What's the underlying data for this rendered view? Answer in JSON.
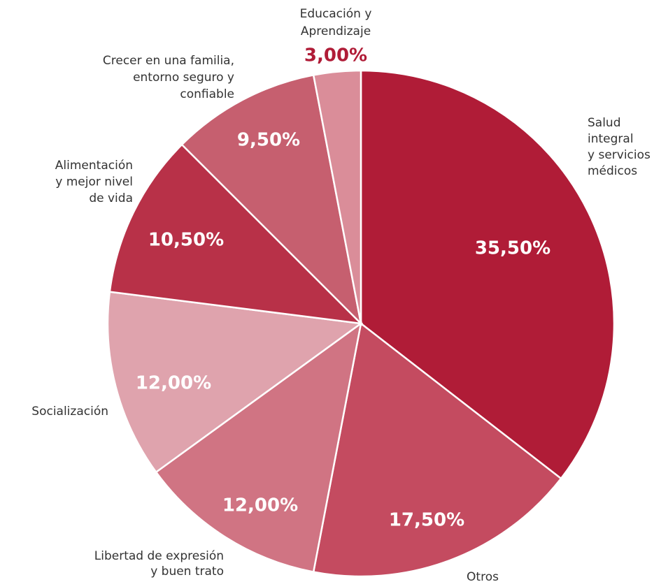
{
  "chart_data": {
    "type": "pie",
    "categories": [
      [
        "Salud",
        "integral",
        "y servicios",
        "médicos"
      ],
      [
        "Otros"
      ],
      [
        "Libertad de expresión",
        "y buen trato"
      ],
      [
        "Socialización"
      ],
      [
        "Alimentación",
        "y mejor nivel",
        "de vida"
      ],
      [
        "Crecer en una familia,",
        "entorno seguro y",
        "confiable"
      ],
      [
        "Educación y",
        "Aprendizaje"
      ]
    ],
    "values": [
      35.5,
      17.5,
      12,
      12,
      10.5,
      9.5,
      3
    ],
    "value_labels": [
      "35,50%",
      "17,50%",
      "12,00%",
      "12,00%",
      "10,50%",
      "9,50%",
      "3,00%"
    ],
    "colors": [
      "#b01c37",
      "#c44b60",
      "#d07483",
      "#dfa3ad",
      "#b83148",
      "#c65f6f",
      "#da8d99"
    ]
  }
}
